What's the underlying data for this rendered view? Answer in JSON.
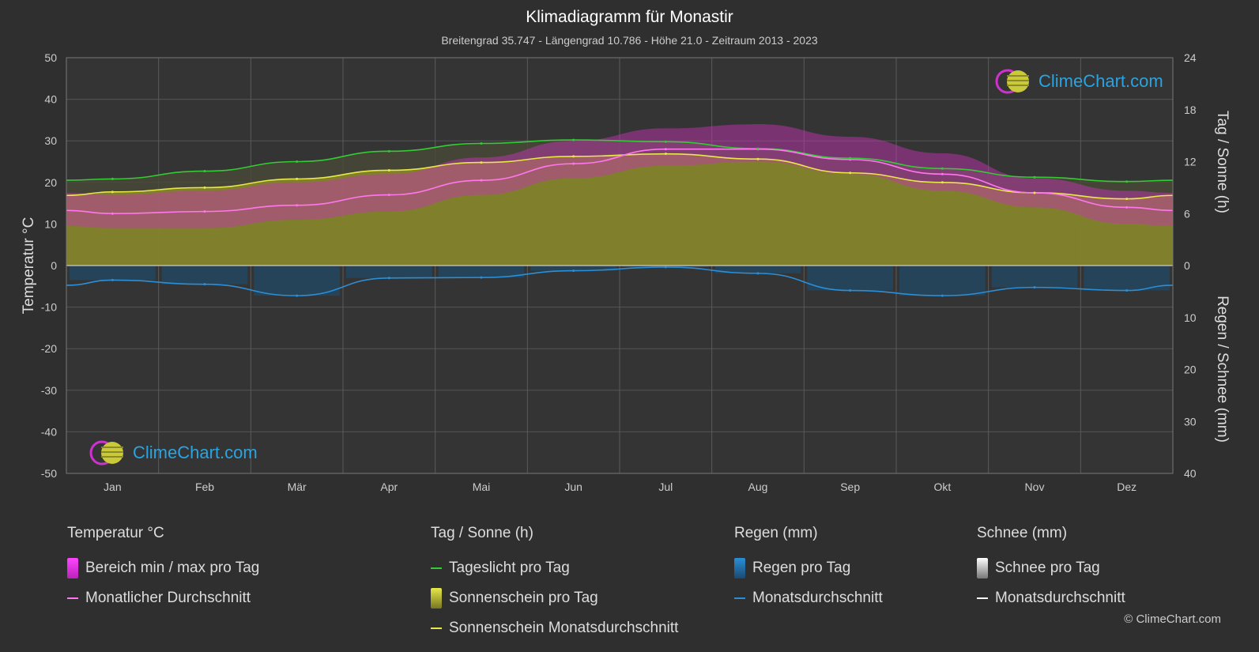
{
  "header": {
    "title": "Klimadiagramm für Monastir",
    "subtitle": "Breitengrad 35.747 - Längengrad 10.786 - Höhe 21.0 - Zeitraum 2013 - 2023"
  },
  "axes": {
    "left_title": "Temperatur °C",
    "right_top_title": "Tag / Sonne (h)",
    "right_bottom_title": "Regen / Schnee (mm)"
  },
  "logo": {
    "text": "ClimeChart.com"
  },
  "copyright": "© ClimeChart.com",
  "legend": {
    "temperature": {
      "heading": "Temperatur °C",
      "items": [
        "Bereich min / max pro Tag",
        "Monatlicher Durchschnitt"
      ]
    },
    "sun": {
      "heading": "Tag / Sonne (h)",
      "items": [
        "Tageslicht pro Tag",
        "Sonnenschein pro Tag",
        "Sonnenschein Monatsdurchschnitt"
      ]
    },
    "rain": {
      "heading": "Regen (mm)",
      "items": [
        "Regen pro Tag",
        "Monatsdurchschnitt"
      ]
    },
    "snow": {
      "heading": "Schnee (mm)",
      "items": [
        "Schnee pro Tag",
        "Monatsdurchschnitt"
      ]
    }
  },
  "colors": {
    "background": "#2f2f2f",
    "daylight": "#33cc33",
    "sunshine_line": "#e8e84a",
    "sunshine_fill": "#8a8a2a",
    "temp_line": "#ff77ee",
    "temp_range": "#cc33bb",
    "rain": "#2a8fd8",
    "snow": "#ffffff"
  },
  "chart_data": {
    "type": "line",
    "title": "Klimadiagramm für Monastir",
    "categories": [
      "Jan",
      "Feb",
      "Mär",
      "Apr",
      "Mai",
      "Jun",
      "Jul",
      "Aug",
      "Sep",
      "Okt",
      "Nov",
      "Dez"
    ],
    "left_axis": {
      "label": "Temperatur °C",
      "min": -50,
      "max": 50,
      "ticks": [
        50,
        40,
        30,
        20,
        10,
        0,
        -10,
        -20,
        -30,
        -40,
        -50
      ]
    },
    "right_axis_top": {
      "label": "Tag / Sonne (h)",
      "min": 0,
      "max": 24,
      "ticks": [
        24,
        18,
        12,
        6,
        0
      ]
    },
    "right_axis_bottom": {
      "label": "Regen / Schnee (mm)",
      "min": 0,
      "max": 40,
      "ticks": [
        0,
        10,
        20,
        30,
        40
      ]
    },
    "grid": true,
    "series": [
      {
        "name": "Tageslicht pro Tag",
        "axis": "sun_hours",
        "values": [
          10.0,
          10.9,
          12.0,
          13.2,
          14.1,
          14.5,
          14.3,
          13.5,
          12.4,
          11.2,
          10.2,
          9.7
        ]
      },
      {
        "name": "Sonnenschein Monatsdurchschnitt",
        "axis": "sun_hours",
        "values": [
          8.5,
          9.0,
          10.0,
          11.0,
          11.9,
          12.6,
          12.9,
          12.3,
          10.7,
          9.6,
          8.4,
          7.7
        ]
      },
      {
        "name": "Monatlicher Durchschnitt",
        "axis": "temperature",
        "values": [
          12.5,
          13.0,
          14.5,
          17.0,
          20.5,
          24.5,
          28.0,
          28.0,
          25.5,
          22.0,
          17.5,
          14.0
        ]
      },
      {
        "name": "Monatsdurchschnitt",
        "axis": "rain_mm",
        "values": [
          2.8,
          3.6,
          5.8,
          2.4,
          2.3,
          1.0,
          0.3,
          1.5,
          4.8,
          5.8,
          4.2,
          4.8
        ]
      }
    ],
    "temperature_range_band": {
      "min": [
        9,
        9,
        11,
        13,
        17,
        21,
        24,
        25,
        22,
        18,
        14,
        10
      ],
      "max": [
        17,
        18,
        20,
        22,
        26,
        30,
        33,
        34,
        31,
        27,
        21,
        18
      ]
    }
  }
}
